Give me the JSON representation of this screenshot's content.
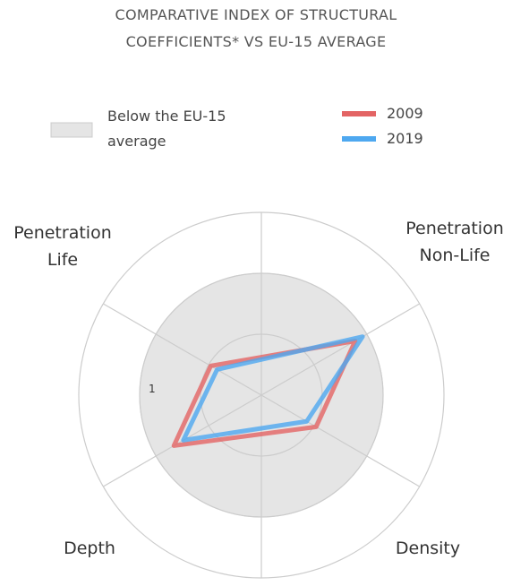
{
  "chart_data": {
    "type": "radar",
    "title": "COMPARATIVE INDEX OF STRUCTURAL COEFFICIENTS* VS EU-15 AVERAGE",
    "band_label": "Below the EU-15 average",
    "band_value": 1,
    "band_color": "#e5e5e5",
    "categories": [
      "Penetration Non-Life",
      "Density",
      "Depth",
      "Penetration Life"
    ],
    "series": [
      {
        "name": "2009",
        "color": "#e36464",
        "values": [
          0.89,
          0.52,
          0.83,
          0.48
        ]
      },
      {
        "name": "2019",
        "color": "#4ea8f0",
        "values": [
          0.96,
          0.43,
          0.74,
          0.42
        ]
      }
    ],
    "rlim": [
      0,
      1.5
    ],
    "rticks": [
      1
    ],
    "rgrid": [
      0.5,
      1.5
    ]
  }
}
